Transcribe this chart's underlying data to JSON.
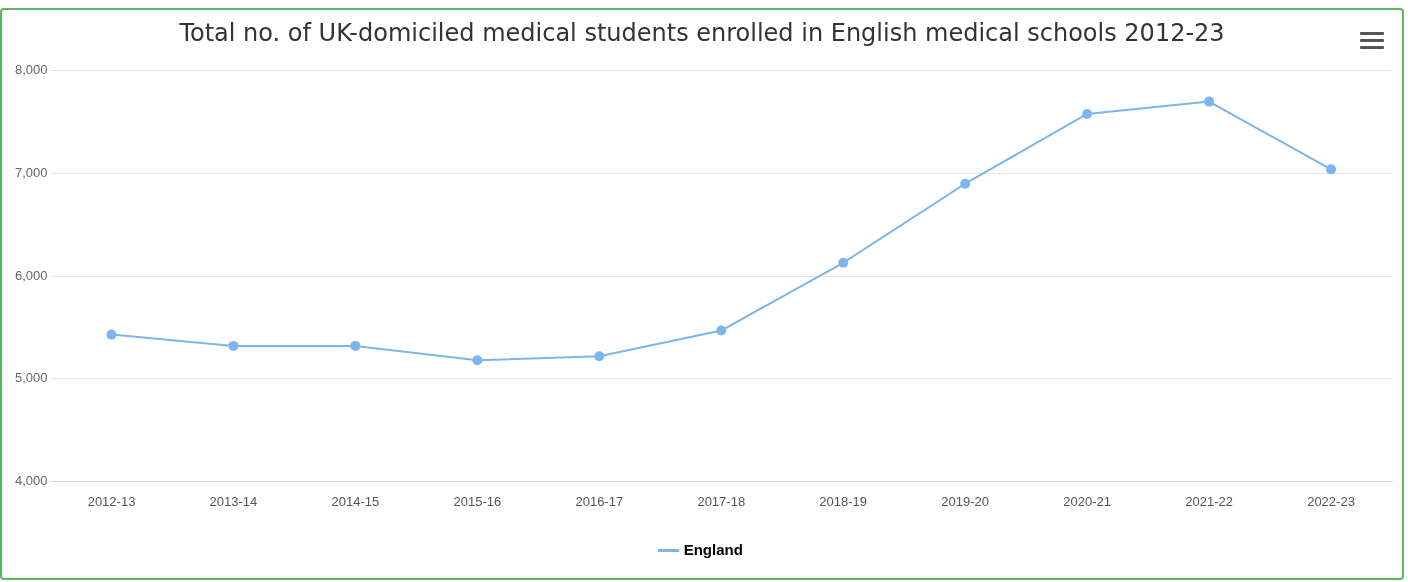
{
  "chart_data": {
    "type": "line",
    "title": "Total no. of UK-domiciled medical students enrolled in English medical schools 2012-23",
    "categories": [
      "2012-13",
      "2013-14",
      "2014-15",
      "2015-16",
      "2016-17",
      "2017-18",
      "2018-19",
      "2019-20",
      "2020-21",
      "2021-22",
      "2022-23"
    ],
    "series": [
      {
        "name": "England",
        "color": "#7cb5ec",
        "values": [
          5430,
          5320,
          5320,
          5180,
          5220,
          5470,
          6130,
          6900,
          7580,
          7700,
          7040
        ]
      }
    ],
    "ylim": [
      4000,
      8000
    ],
    "yticks": [
      {
        "value": 4000,
        "label": "4,000"
      },
      {
        "value": 5000,
        "label": "5,000"
      },
      {
        "value": 6000,
        "label": "6,000"
      },
      {
        "value": 7000,
        "label": "7,000"
      },
      {
        "value": 8000,
        "label": "8,000"
      }
    ],
    "grid": "y",
    "legend": "bottom",
    "marker": "circle",
    "line_style": "solid"
  }
}
